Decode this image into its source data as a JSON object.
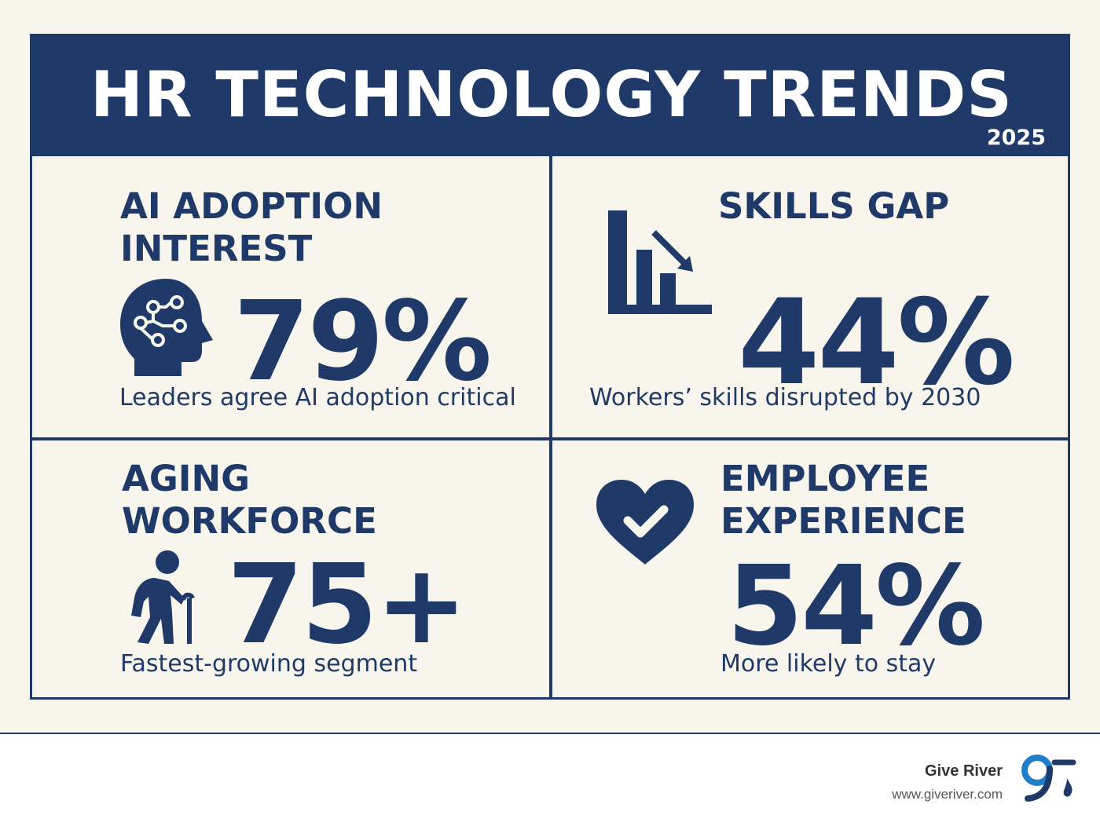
{
  "header": {
    "title": "HR TECHNOLOGY TRENDS",
    "year": "2025"
  },
  "colors": {
    "navy": "#1f3a68",
    "background": "#f8f5ed",
    "white": "#ffffff"
  },
  "cards": [
    {
      "heading_line1": "AI ADOPTION",
      "heading_line2": "INTEREST",
      "stat": "79%",
      "description": "Leaders agree AI adoption critical",
      "icon": "brain-head-icon"
    },
    {
      "heading_line1": "SKILLS GAP",
      "stat": "44%",
      "description": "Workers’ skills disrupted by 2030",
      "icon": "declining-bar-chart-icon"
    },
    {
      "heading_line1": "AGING",
      "heading_line2": "WORKFORCE",
      "stat": "75+",
      "description": "Fastest-growing segment",
      "icon": "elderly-person-cane-icon"
    },
    {
      "heading_line1": "EMPLOYEE",
      "heading_line2": "EXPERIENCE",
      "stat": "54%",
      "description": "More likely to stay",
      "icon": "heart-check-icon"
    }
  ],
  "footer": {
    "brand": "Give River",
    "url": "www.giveriver.com",
    "logo_icon": "give-river-logo-icon"
  }
}
